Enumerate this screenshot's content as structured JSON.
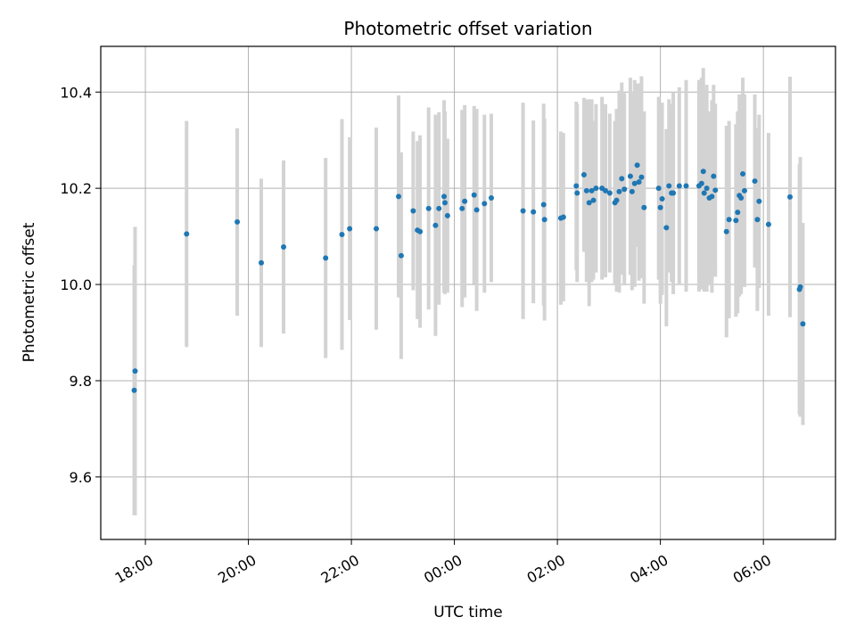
{
  "chart_data": {
    "type": "scatter",
    "title": "Photometric offset variation",
    "xlabel": "UTC time",
    "ylabel": "Photometric offset",
    "xlim": [
      "2000-01-01T17:08",
      "2000-01-02T07:24"
    ],
    "ylim": [
      9.47,
      10.495
    ],
    "x_ticks": [
      "18:00",
      "20:00",
      "22:00",
      "00:00",
      "02:00",
      "04:00",
      "06:00"
    ],
    "y_ticks": [
      9.6,
      9.8,
      10.0,
      10.2,
      10.4
    ],
    "y_tick_labels": [
      "9.6",
      "9.8",
      "10.0",
      "10.2",
      "10.4"
    ],
    "grid": true,
    "colors": {
      "point": "#1f77b4",
      "errorbar": "#d3d3d3",
      "grid": "#b0b0b0",
      "axes": "#000000"
    },
    "series": [
      {
        "points": [
          {
            "x": "2000-01-01T17:47",
            "y": 9.78,
            "err": 0.26
          },
          {
            "x": "2000-01-01T17:48",
            "y": 9.82,
            "err": 0.3
          },
          {
            "x": "2000-01-01T18:48",
            "y": 10.105,
            "err": 0.235
          },
          {
            "x": "2000-01-01T19:47",
            "y": 10.13,
            "err": 0.195
          },
          {
            "x": "2000-01-01T20:15",
            "y": 10.045,
            "err": 0.175
          },
          {
            "x": "2000-01-01T20:41",
            "y": 10.078,
            "err": 0.18
          },
          {
            "x": "2000-01-01T21:30",
            "y": 10.055,
            "err": 0.208
          },
          {
            "x": "2000-01-01T21:49",
            "y": 10.104,
            "err": 0.24
          },
          {
            "x": "2000-01-01T21:58",
            "y": 10.116,
            "err": 0.19
          },
          {
            "x": "2000-01-01T22:29",
            "y": 10.116,
            "err": 0.21
          },
          {
            "x": "2000-01-01T22:55",
            "y": 10.183,
            "err": 0.21
          },
          {
            "x": "2000-01-01T22:58",
            "y": 10.06,
            "err": 0.215
          },
          {
            "x": "2000-01-01T23:12",
            "y": 10.153,
            "err": 0.165
          },
          {
            "x": "2000-01-01T23:17",
            "y": 10.113,
            "err": 0.185
          },
          {
            "x": "2000-01-01T23:20",
            "y": 10.11,
            "err": 0.2
          },
          {
            "x": "2000-01-01T23:30",
            "y": 10.158,
            "err": 0.21
          },
          {
            "x": "2000-01-01T23:38",
            "y": 10.123,
            "err": 0.23
          },
          {
            "x": "2000-01-01T23:42",
            "y": 10.158,
            "err": 0.2
          },
          {
            "x": "2000-01-01T23:48",
            "y": 10.183,
            "err": 0.2
          },
          {
            "x": "2000-01-01T23:49",
            "y": 10.17,
            "err": 0.19
          },
          {
            "x": "2000-01-01T23:52",
            "y": 10.143,
            "err": 0.16
          },
          {
            "x": "2000-01-02T00:09",
            "y": 10.158,
            "err": 0.205
          },
          {
            "x": "2000-01-02T00:12",
            "y": 10.173,
            "err": 0.2
          },
          {
            "x": "2000-01-02T00:23",
            "y": 10.186,
            "err": 0.185
          },
          {
            "x": "2000-01-02T00:26",
            "y": 10.155,
            "err": 0.21
          },
          {
            "x": "2000-01-02T00:35",
            "y": 10.168,
            "err": 0.185
          },
          {
            "x": "2000-01-02T00:43",
            "y": 10.18,
            "err": 0.175
          },
          {
            "x": "2000-01-02T01:20",
            "y": 10.153,
            "err": 0.225
          },
          {
            "x": "2000-01-02T01:32",
            "y": 10.151,
            "err": 0.19
          },
          {
            "x": "2000-01-02T01:44",
            "y": 10.166,
            "err": 0.21
          },
          {
            "x": "2000-01-02T01:45",
            "y": 10.135,
            "err": 0.21
          },
          {
            "x": "2000-01-02T02:04",
            "y": 10.138,
            "err": 0.18
          },
          {
            "x": "2000-01-02T02:07",
            "y": 10.14,
            "err": 0.175
          },
          {
            "x": "2000-01-02T02:22",
            "y": 10.205,
            "err": 0.175
          },
          {
            "x": "2000-01-02T02:23",
            "y": 10.19,
            "err": 0.185
          },
          {
            "x": "2000-01-02T02:31",
            "y": 10.228,
            "err": 0.16
          },
          {
            "x": "2000-01-02T02:34",
            "y": 10.195,
            "err": 0.19
          },
          {
            "x": "2000-01-02T02:37",
            "y": 10.17,
            "err": 0.215
          },
          {
            "x": "2000-01-02T02:40",
            "y": 10.195,
            "err": 0.19
          },
          {
            "x": "2000-01-02T02:42",
            "y": 10.175,
            "err": 0.165
          },
          {
            "x": "2000-01-02T02:45",
            "y": 10.2,
            "err": 0.175
          },
          {
            "x": "2000-01-02T02:52",
            "y": 10.2,
            "err": 0.19
          },
          {
            "x": "2000-01-02T02:56",
            "y": 10.195,
            "err": 0.18
          },
          {
            "x": "2000-01-02T03:01",
            "y": 10.19,
            "err": 0.165
          },
          {
            "x": "2000-01-02T03:07",
            "y": 10.17,
            "err": 0.17
          },
          {
            "x": "2000-01-02T03:09",
            "y": 10.175,
            "err": 0.19
          },
          {
            "x": "2000-01-02T03:12",
            "y": 10.193,
            "err": 0.21
          },
          {
            "x": "2000-01-02T03:15",
            "y": 10.22,
            "err": 0.2
          },
          {
            "x": "2000-01-02T03:18",
            "y": 10.198,
            "err": 0.2
          },
          {
            "x": "2000-01-02T03:25",
            "y": 10.225,
            "err": 0.205
          },
          {
            "x": "2000-01-02T03:27",
            "y": 10.193,
            "err": 0.205
          },
          {
            "x": "2000-01-02T03:30",
            "y": 10.21,
            "err": 0.215
          },
          {
            "x": "2000-01-02T03:33",
            "y": 10.248,
            "err": 0.17
          },
          {
            "x": "2000-01-02T03:35",
            "y": 10.213,
            "err": 0.205
          },
          {
            "x": "2000-01-02T03:38",
            "y": 10.223,
            "err": 0.21
          },
          {
            "x": "2000-01-02T03:41",
            "y": 10.16,
            "err": 0.2
          },
          {
            "x": "2000-01-02T03:58",
            "y": 10.2,
            "err": 0.19
          },
          {
            "x": "2000-01-02T04:00",
            "y": 10.16,
            "err": 0.2
          },
          {
            "x": "2000-01-02T04:02",
            "y": 10.178,
            "err": 0.2
          },
          {
            "x": "2000-01-02T04:07",
            "y": 10.118,
            "err": 0.205
          },
          {
            "x": "2000-01-02T04:10",
            "y": 10.205,
            "err": 0.18
          },
          {
            "x": "2000-01-02T04:13",
            "y": 10.19,
            "err": 0.185
          },
          {
            "x": "2000-01-02T04:15",
            "y": 10.19,
            "err": 0.21
          },
          {
            "x": "2000-01-02T04:22",
            "y": 10.205,
            "err": 0.205
          },
          {
            "x": "2000-01-02T04:30",
            "y": 10.205,
            "err": 0.22
          },
          {
            "x": "2000-01-02T04:45",
            "y": 10.205,
            "err": 0.22
          },
          {
            "x": "2000-01-02T04:48",
            "y": 10.21,
            "err": 0.22
          },
          {
            "x": "2000-01-02T04:50",
            "y": 10.235,
            "err": 0.215
          },
          {
            "x": "2000-01-02T04:51",
            "y": 10.19,
            "err": 0.205
          },
          {
            "x": "2000-01-02T04:54",
            "y": 10.2,
            "err": 0.215
          },
          {
            "x": "2000-01-02T04:57",
            "y": 10.18,
            "err": 0.18
          },
          {
            "x": "2000-01-02T05:00",
            "y": 10.183,
            "err": 0.2
          },
          {
            "x": "2000-01-02T05:02",
            "y": 10.225,
            "err": 0.19
          },
          {
            "x": "2000-01-02T05:04",
            "y": 10.196,
            "err": 0.18
          },
          {
            "x": "2000-01-02T05:17",
            "y": 10.11,
            "err": 0.22
          },
          {
            "x": "2000-01-02T05:20",
            "y": 10.135,
            "err": 0.205
          },
          {
            "x": "2000-01-02T05:28",
            "y": 10.133,
            "err": 0.2
          },
          {
            "x": "2000-01-02T05:30",
            "y": 10.15,
            "err": 0.21
          },
          {
            "x": "2000-01-02T05:32",
            "y": 10.185,
            "err": 0.21
          },
          {
            "x": "2000-01-02T05:34",
            "y": 10.18,
            "err": 0.2
          },
          {
            "x": "2000-01-02T05:36",
            "y": 10.23,
            "err": 0.2
          },
          {
            "x": "2000-01-02T05:38",
            "y": 10.195,
            "err": 0.2
          },
          {
            "x": "2000-01-02T05:50",
            "y": 10.215,
            "err": 0.18
          },
          {
            "x": "2000-01-02T05:53",
            "y": 10.135,
            "err": 0.19
          },
          {
            "x": "2000-01-02T05:55",
            "y": 10.173,
            "err": 0.18
          },
          {
            "x": "2000-01-02T06:06",
            "y": 10.125,
            "err": 0.19
          },
          {
            "x": "2000-01-02T06:31",
            "y": 10.182,
            "err": 0.25
          },
          {
            "x": "2000-01-02T06:42",
            "y": 9.99,
            "err": 0.26
          },
          {
            "x": "2000-01-02T06:43",
            "y": 9.995,
            "err": 0.27
          },
          {
            "x": "2000-01-02T06:46",
            "y": 9.918,
            "err": 0.21
          }
        ]
      }
    ]
  }
}
